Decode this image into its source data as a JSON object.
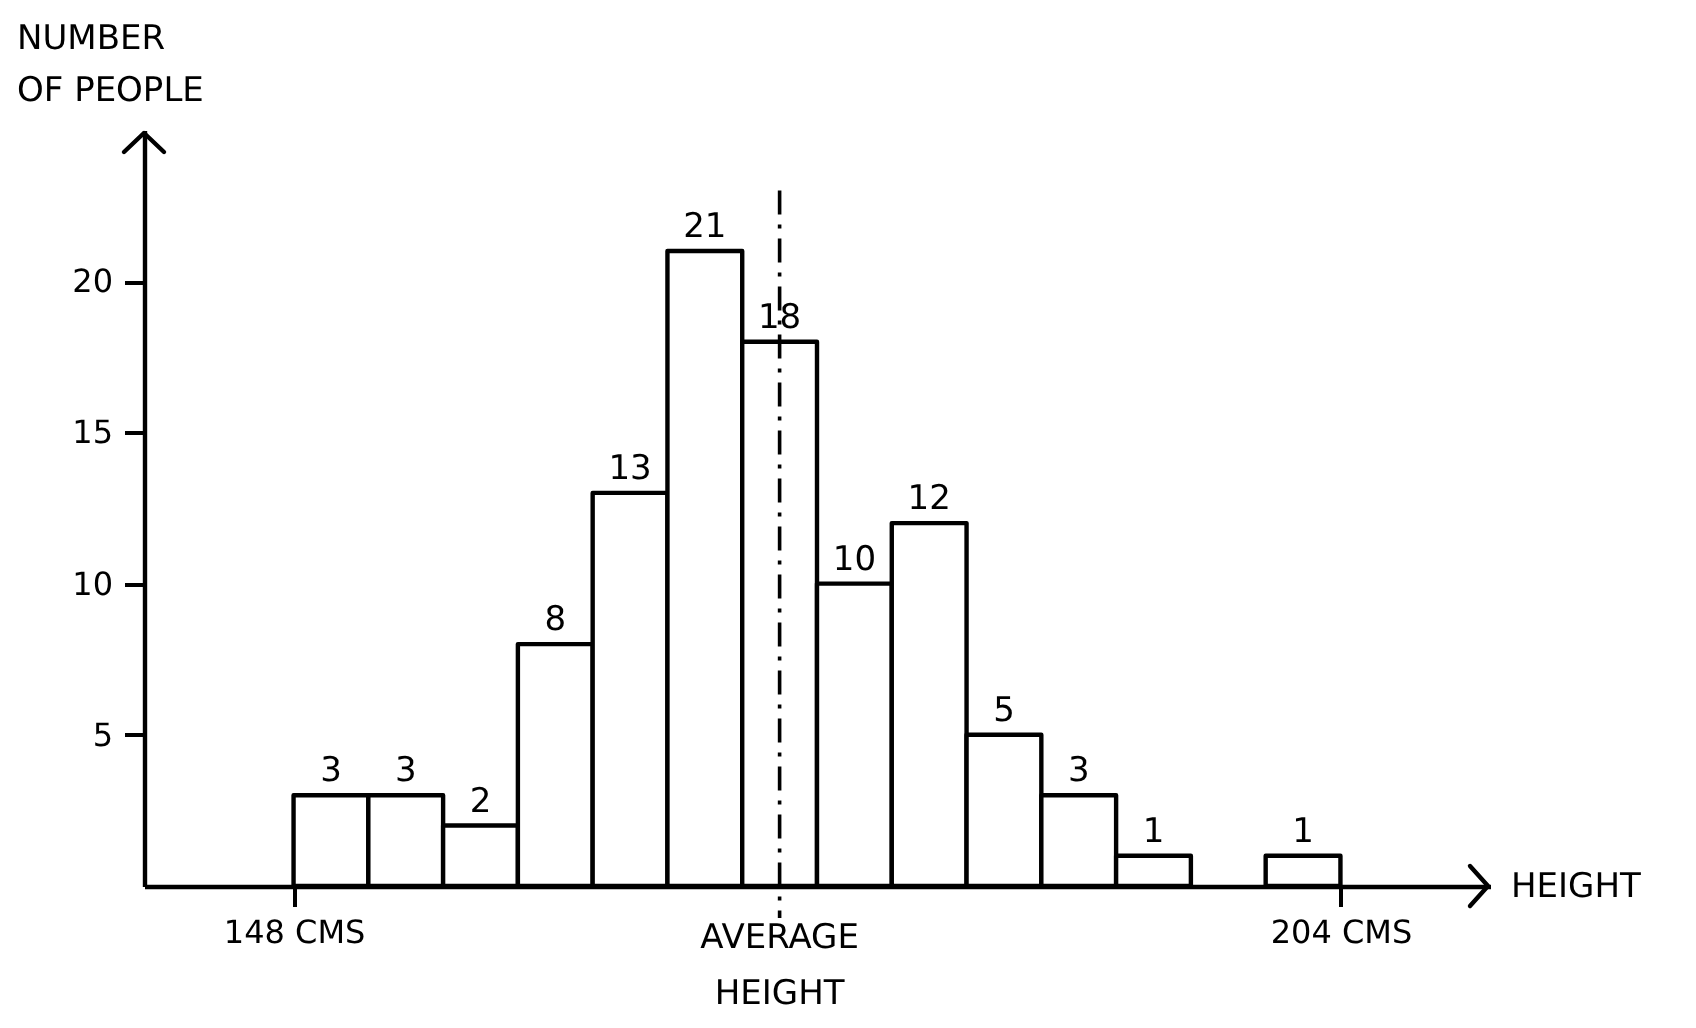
{
  "chart_data": {
    "type": "histogram",
    "xlabel": "HEIGHT",
    "ylabel": "NUMBER OF PEOPLE",
    "bins": [
      148,
      152,
      156,
      160,
      164,
      168,
      172,
      176,
      180,
      184,
      188,
      192,
      196,
      200,
      204
    ],
    "values": [
      3,
      3,
      2,
      8,
      13,
      21,
      18,
      10,
      12,
      5,
      3,
      1,
      null,
      1
    ],
    "value_labels": [
      "3",
      "3",
      "2",
      "8",
      "13",
      "21",
      "18",
      "10",
      "12",
      "5",
      "3",
      "1",
      null,
      "1"
    ],
    "color": "#ffffff",
    "xlim": [
      140,
      212
    ],
    "ylim": [
      0,
      25
    ],
    "xticks": [
      {
        "value": 148,
        "label": "148 CMS"
      },
      {
        "value": 204,
        "label": "204 CMS"
      }
    ],
    "yticks": [
      5,
      10,
      15,
      20
    ],
    "ref_lines": [
      {
        "axis": "x",
        "value": 174,
        "label": "AVERAGE HEIGHT",
        "line_style": "dashed"
      }
    ]
  }
}
